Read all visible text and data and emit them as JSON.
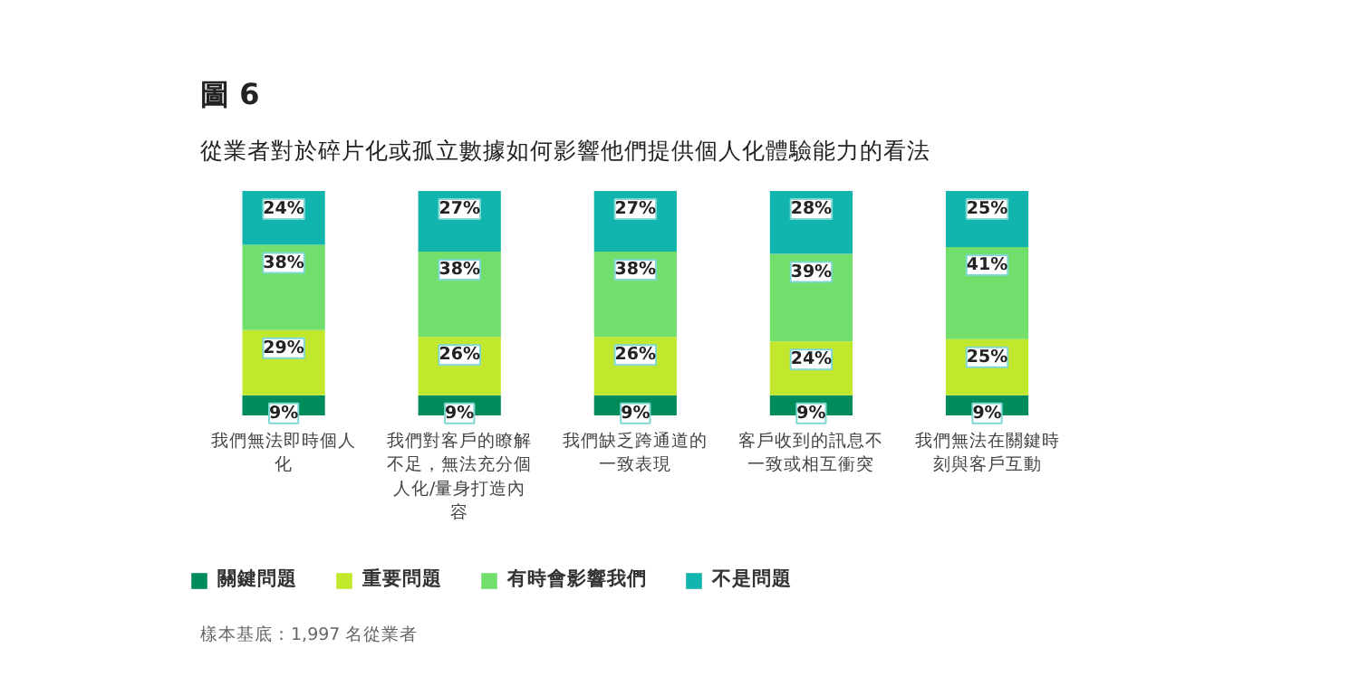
{
  "chart_data": {
    "type": "bar",
    "stacked": true,
    "legend": "bottom",
    "grid": false,
    "title": "圖 6",
    "subtitle": "從業者對於碎片化或孤立數據如何影響他們提供個人化體驗能力的看法",
    "categories": [
      "我們無法即時個人化",
      "我們對客戶的瞭解不足，無法充分個人化/量身打造內容",
      "我們缺乏跨通道的一致表現",
      "客戶收到的訊息不一致或相互衝突",
      "我們無法在關鍵時刻與客戶互動"
    ],
    "series": [
      {
        "name": "關鍵問題",
        "color": "#008c5a",
        "values": [
          9,
          9,
          9,
          9,
          9
        ],
        "value_labels": [
          "9%",
          "9%",
          "9%",
          "9%",
          "9%"
        ]
      },
      {
        "name": "重要問題",
        "color": "#c2e82e",
        "values": [
          29,
          26,
          26,
          24,
          25
        ],
        "value_labels": [
          "29%",
          "26%",
          "26%",
          "24%",
          "25%"
        ]
      },
      {
        "name": "有時會影響我們",
        "color": "#72de6c",
        "values": [
          38,
          38,
          38,
          39,
          41
        ],
        "value_labels": [
          "38%",
          "38%",
          "38%",
          "39%",
          "41%"
        ]
      },
      {
        "name": "不是問題",
        "color": "#12b5ad",
        "values": [
          24,
          27,
          27,
          28,
          25
        ],
        "value_labels": [
          "24%",
          "27%",
          "27%",
          "28%",
          "25%"
        ]
      }
    ],
    "annotations": [
      "樣本基底：1,997 名從業者"
    ]
  }
}
